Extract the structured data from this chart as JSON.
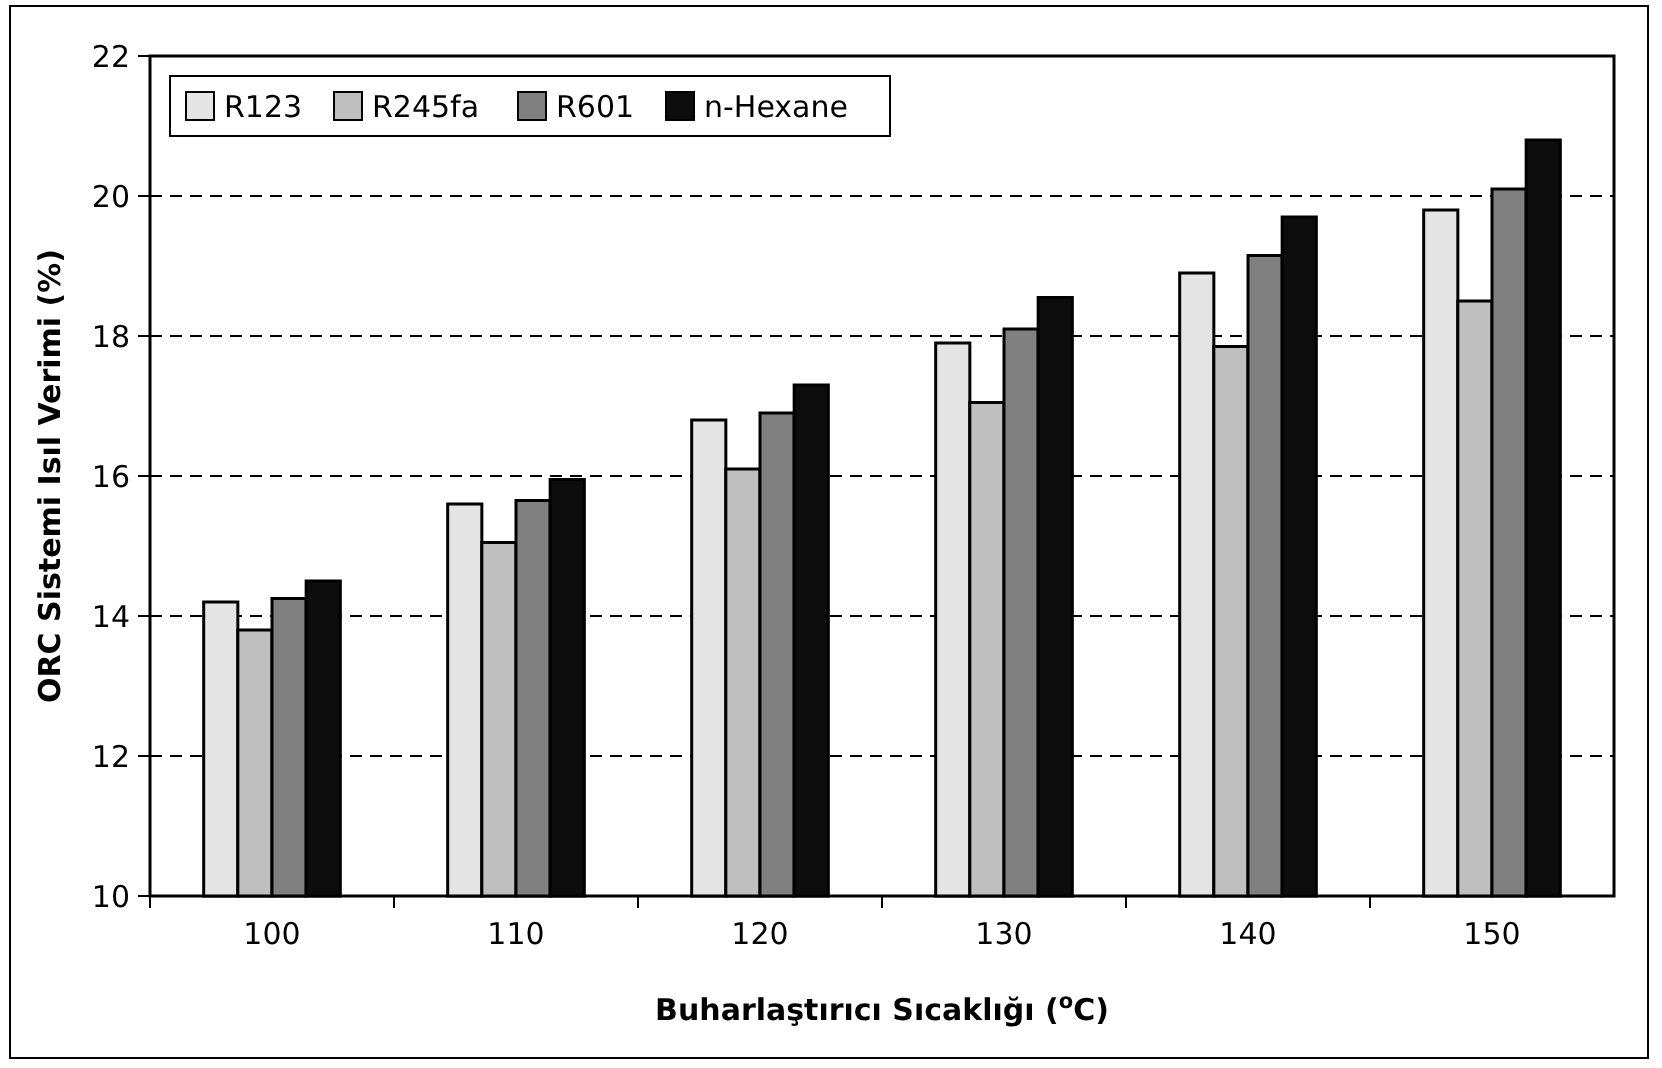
{
  "chart_data": {
    "type": "bar",
    "xlabel": "Buharlaştırıcı Sıcaklığı ($^{o}$C)",
    "ylabel": "ORC Sistemi Isıl Verimi (%)",
    "categories": [
      "100",
      "110",
      "120",
      "130",
      "140",
      "150"
    ],
    "series": [
      {
        "name": "R123",
        "color": "#e4e4e4",
        "values": [
          14.2,
          15.6,
          16.8,
          17.9,
          18.9,
          19.8
        ]
      },
      {
        "name": "R245fa",
        "color": "#bfbfbf",
        "values": [
          13.8,
          15.05,
          16.1,
          17.05,
          17.85,
          18.5
        ]
      },
      {
        "name": "R601",
        "color": "#808080",
        "values": [
          14.25,
          15.65,
          16.9,
          18.1,
          19.15,
          20.1
        ]
      },
      {
        "name": "n-Hexane",
        "color": "#0d0d0d",
        "values": [
          14.5,
          15.95,
          17.3,
          18.55,
          19.7,
          20.8
        ]
      }
    ],
    "ylim": [
      10,
      22
    ],
    "yticks": [
      10,
      12,
      14,
      16,
      18,
      20,
      22
    ],
    "grid": "y",
    "legend": "top left"
  }
}
